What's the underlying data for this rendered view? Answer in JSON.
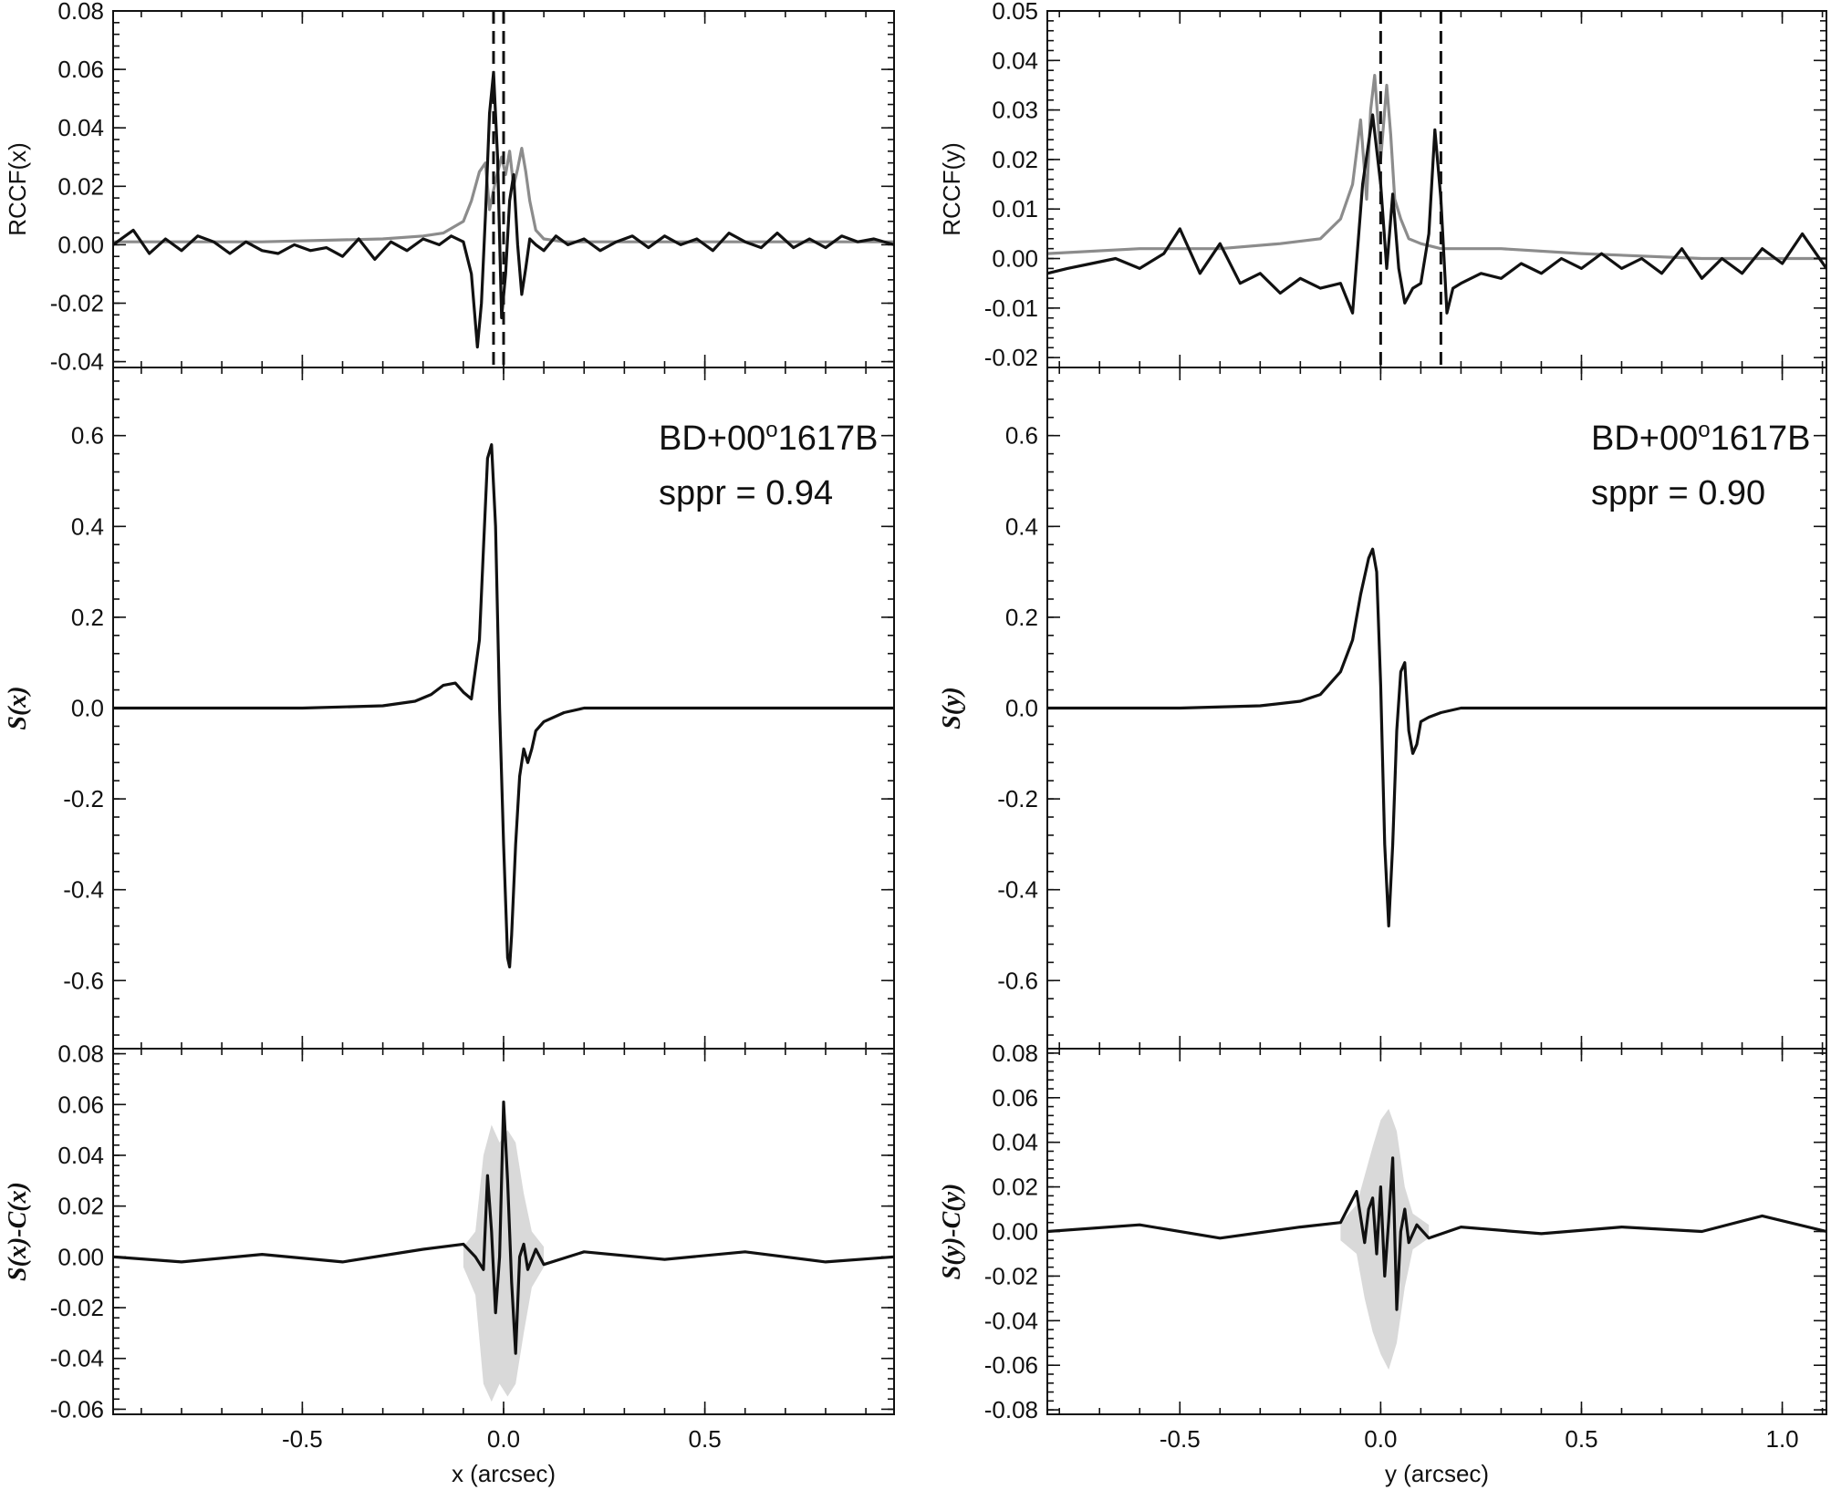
{
  "chart_data": [
    {
      "type": "line",
      "panel": "left-top",
      "ylabel": "RCCF(x)",
      "xlim": [
        -0.97,
        0.97
      ],
      "ylim": [
        -0.042,
        0.08
      ],
      "yticks": [
        -0.04,
        -0.02,
        0.0,
        0.02,
        0.04,
        0.06,
        0.08
      ],
      "ytick_labels": [
        "-0.04",
        "-0.02",
        "0.00",
        "0.02",
        "0.04",
        "0.06",
        "0.08"
      ],
      "xticks": [
        -0.5,
        0.0,
        0.5
      ],
      "vlines": [
        -0.025,
        0.0
      ],
      "series": [
        {
          "color": "#111111",
          "x": [
            -0.97,
            -0.92,
            -0.88,
            -0.84,
            -0.8,
            -0.76,
            -0.72,
            -0.68,
            -0.64,
            -0.6,
            -0.56,
            -0.52,
            -0.48,
            -0.44,
            -0.4,
            -0.36,
            -0.32,
            -0.28,
            -0.24,
            -0.2,
            -0.16,
            -0.13,
            -0.1,
            -0.08,
            -0.065,
            -0.055,
            -0.045,
            -0.035,
            -0.025,
            -0.015,
            -0.005,
            0.005,
            0.015,
            0.025,
            0.035,
            0.045,
            0.055,
            0.065,
            0.08,
            0.1,
            0.13,
            0.16,
            0.2,
            0.24,
            0.28,
            0.32,
            0.36,
            0.4,
            0.44,
            0.48,
            0.52,
            0.56,
            0.6,
            0.64,
            0.68,
            0.72,
            0.76,
            0.8,
            0.84,
            0.88,
            0.92,
            0.97
          ],
          "y": [
            0.0,
            0.005,
            -0.003,
            0.002,
            -0.002,
            0.003,
            0.001,
            -0.003,
            0.001,
            -0.002,
            -0.003,
            0.0,
            -0.002,
            -0.001,
            -0.004,
            0.002,
            -0.005,
            0.001,
            -0.002,
            0.002,
            0.0,
            0.003,
            0.001,
            -0.01,
            -0.035,
            -0.02,
            0.01,
            0.045,
            0.059,
            0.03,
            -0.025,
            -0.01,
            0.015,
            0.024,
            0.0,
            -0.017,
            -0.008,
            0.002,
            0.0,
            -0.002,
            0.003,
            0.0,
            0.002,
            -0.002,
            0.001,
            0.003,
            -0.001,
            0.003,
            0.0,
            0.002,
            -0.002,
            0.004,
            0.001,
            -0.001,
            0.004,
            -0.001,
            0.002,
            -0.001,
            0.003,
            0.001,
            0.002,
            0.0
          ]
        },
        {
          "color": "#8c8c8c",
          "x": [
            -0.97,
            -0.6,
            -0.3,
            -0.2,
            -0.15,
            -0.1,
            -0.08,
            -0.06,
            -0.045,
            -0.035,
            -0.02,
            -0.005,
            0.005,
            0.015,
            0.025,
            0.035,
            0.045,
            0.055,
            0.065,
            0.08,
            0.1,
            0.15,
            0.25,
            0.5,
            0.97
          ],
          "y": [
            0.001,
            0.001,
            0.002,
            0.003,
            0.004,
            0.008,
            0.015,
            0.025,
            0.028,
            0.012,
            0.022,
            0.03,
            0.024,
            0.032,
            0.02,
            0.026,
            0.033,
            0.025,
            0.015,
            0.005,
            0.002,
            0.001,
            0.001,
            0.001,
            0.001
          ]
        }
      ]
    },
    {
      "type": "line",
      "panel": "left-middle",
      "ylabel": "S(x)",
      "xlim": [
        -0.97,
        0.97
      ],
      "ylim": [
        -0.75,
        0.75
      ],
      "yticks": [
        -0.6,
        -0.4,
        -0.2,
        0.0,
        0.2,
        0.4,
        0.6
      ],
      "ytick_labels": [
        "-0.6",
        "-0.4",
        "-0.2",
        "0.0",
        "0.2",
        "0.4",
        "0.6"
      ],
      "xticks": [
        -0.5,
        0.0,
        0.5
      ],
      "annotation_lines": [
        "BD+00",
        "o",
        "1617B",
        "sppr = 0.94"
      ],
      "series": [
        {
          "color": "#111111",
          "x": [
            -0.97,
            -0.5,
            -0.3,
            -0.22,
            -0.18,
            -0.15,
            -0.12,
            -0.1,
            -0.08,
            -0.06,
            -0.05,
            -0.04,
            -0.03,
            -0.02,
            -0.01,
            0.0,
            0.01,
            0.015,
            0.02,
            0.03,
            0.04,
            0.05,
            0.06,
            0.07,
            0.08,
            0.1,
            0.15,
            0.2,
            0.3,
            0.5,
            0.97
          ],
          "y": [
            0.0,
            0.0,
            0.005,
            0.015,
            0.03,
            0.05,
            0.055,
            0.035,
            0.02,
            0.15,
            0.35,
            0.55,
            0.58,
            0.4,
            0.0,
            -0.3,
            -0.55,
            -0.57,
            -0.5,
            -0.3,
            -0.15,
            -0.09,
            -0.12,
            -0.09,
            -0.05,
            -0.03,
            -0.01,
            0.0,
            0.0,
            0.0,
            0.0
          ]
        }
      ]
    },
    {
      "type": "line",
      "panel": "left-bottom",
      "ylabel": "S(x)-C(x)",
      "xlabel": "x (arcsec)",
      "xlim": [
        -0.97,
        0.97
      ],
      "ylim": [
        -0.062,
        0.082
      ],
      "yticks": [
        -0.06,
        -0.04,
        -0.02,
        0.0,
        0.02,
        0.04,
        0.06,
        0.08
      ],
      "ytick_labels": [
        "-0.06",
        "-0.04",
        "-0.02",
        "0.00",
        "0.02",
        "0.04",
        "0.06",
        "0.08"
      ],
      "xticks": [
        -0.5,
        0.0,
        0.5
      ],
      "xtick_labels": [
        "-0.5",
        "0.0",
        "0.5"
      ],
      "series": [
        {
          "color": "#111111",
          "x": [
            -0.97,
            -0.8,
            -0.6,
            -0.4,
            -0.2,
            -0.1,
            -0.07,
            -0.05,
            -0.04,
            -0.03,
            -0.02,
            -0.01,
            0.0,
            0.01,
            0.02,
            0.03,
            0.04,
            0.05,
            0.06,
            0.08,
            0.1,
            0.2,
            0.4,
            0.6,
            0.8,
            0.97
          ],
          "y": [
            0.0,
            -0.002,
            0.001,
            -0.002,
            0.003,
            0.005,
            0.0,
            -0.005,
            0.032,
            0.01,
            -0.022,
            0.0,
            0.061,
            0.03,
            -0.01,
            -0.038,
            0.0,
            0.005,
            -0.005,
            0.003,
            -0.003,
            0.002,
            -0.001,
            0.002,
            -0.002,
            0.0
          ]
        },
        {
          "color": "#d9d9d9",
          "kind": "band",
          "x": [
            -0.1,
            -0.07,
            -0.05,
            -0.03,
            -0.01,
            0.01,
            0.03,
            0.05,
            0.07,
            0.1
          ],
          "upper": [
            0.004,
            0.01,
            0.04,
            0.052,
            0.045,
            0.05,
            0.045,
            0.025,
            0.01,
            0.004
          ],
          "lower": [
            -0.004,
            -0.015,
            -0.05,
            -0.057,
            -0.05,
            -0.055,
            -0.05,
            -0.03,
            -0.012,
            -0.004
          ]
        }
      ]
    },
    {
      "type": "line",
      "panel": "right-top",
      "ylabel": "RCCF(y)",
      "xlim": [
        -0.83,
        1.11
      ],
      "ylim": [
        -0.022,
        0.05
      ],
      "yticks": [
        -0.02,
        -0.01,
        0.0,
        0.01,
        0.02,
        0.03,
        0.04,
        0.05
      ],
      "ytick_labels": [
        "-0.02",
        "-0.01",
        "0.00",
        "0.01",
        "0.02",
        "0.03",
        "0.04",
        "0.05"
      ],
      "xticks": [
        -0.5,
        0.0,
        0.5,
        1.0
      ],
      "vlines": [
        0.0,
        0.15
      ],
      "series": [
        {
          "color": "#111111",
          "x": [
            -0.83,
            -0.78,
            -0.72,
            -0.66,
            -0.6,
            -0.54,
            -0.5,
            -0.45,
            -0.4,
            -0.35,
            -0.3,
            -0.25,
            -0.2,
            -0.15,
            -0.1,
            -0.07,
            -0.045,
            -0.02,
            0.0,
            0.015,
            0.03,
            0.045,
            0.06,
            0.08,
            0.1,
            0.12,
            0.135,
            0.15,
            0.165,
            0.18,
            0.2,
            0.25,
            0.3,
            0.35,
            0.4,
            0.45,
            0.5,
            0.55,
            0.6,
            0.65,
            0.7,
            0.75,
            0.8,
            0.85,
            0.9,
            0.95,
            1.0,
            1.05,
            1.11
          ],
          "y": [
            -0.003,
            -0.002,
            -0.001,
            0.0,
            -0.002,
            0.001,
            0.006,
            -0.003,
            0.003,
            -0.005,
            -0.003,
            -0.007,
            -0.004,
            -0.006,
            -0.005,
            -0.011,
            0.015,
            0.029,
            0.015,
            -0.002,
            0.013,
            -0.002,
            -0.009,
            -0.006,
            -0.005,
            0.005,
            0.026,
            0.012,
            -0.011,
            -0.006,
            -0.005,
            -0.003,
            -0.004,
            -0.001,
            -0.003,
            0.0,
            -0.002,
            0.001,
            -0.002,
            0.0,
            -0.003,
            0.002,
            -0.004,
            0.0,
            -0.003,
            0.002,
            -0.001,
            0.005,
            -0.002
          ]
        },
        {
          "color": "#8c8c8c",
          "x": [
            -0.83,
            -0.6,
            -0.4,
            -0.25,
            -0.15,
            -0.1,
            -0.07,
            -0.05,
            -0.035,
            -0.025,
            -0.015,
            0.0,
            0.015,
            0.025,
            0.035,
            0.05,
            0.07,
            0.1,
            0.15,
            0.2,
            0.3,
            0.5,
            0.8,
            1.11
          ],
          "y": [
            0.001,
            0.002,
            0.002,
            0.003,
            0.004,
            0.008,
            0.015,
            0.028,
            0.012,
            0.03,
            0.037,
            0.02,
            0.035,
            0.025,
            0.012,
            0.008,
            0.004,
            0.003,
            0.002,
            0.002,
            0.002,
            0.001,
            0.0,
            0.0
          ]
        }
      ]
    },
    {
      "type": "line",
      "panel": "right-middle",
      "ylabel": "S(y)",
      "xlim": [
        -0.83,
        1.11
      ],
      "ylim": [
        -0.75,
        0.75
      ],
      "yticks": [
        -0.6,
        -0.4,
        -0.2,
        0.0,
        0.2,
        0.4,
        0.6
      ],
      "ytick_labels": [
        "-0.6",
        "-0.4",
        "-0.2",
        "0.0",
        "0.2",
        "0.4",
        "0.6"
      ],
      "xticks": [
        -0.5,
        0.0,
        0.5,
        1.0
      ],
      "annotation_lines": [
        "BD+00",
        "o",
        "1617B",
        "sppr = 0.90"
      ],
      "series": [
        {
          "color": "#111111",
          "x": [
            -0.83,
            -0.5,
            -0.3,
            -0.2,
            -0.15,
            -0.1,
            -0.07,
            -0.05,
            -0.03,
            -0.02,
            -0.01,
            0.0,
            0.01,
            0.02,
            0.03,
            0.04,
            0.05,
            0.06,
            0.07,
            0.08,
            0.09,
            0.1,
            0.12,
            0.15,
            0.2,
            0.3,
            0.5,
            0.8,
            1.11
          ],
          "y": [
            0.0,
            0.0,
            0.005,
            0.015,
            0.03,
            0.08,
            0.15,
            0.25,
            0.33,
            0.35,
            0.3,
            0.05,
            -0.3,
            -0.48,
            -0.3,
            -0.05,
            0.08,
            0.1,
            -0.05,
            -0.1,
            -0.08,
            -0.03,
            -0.02,
            -0.01,
            0.0,
            0.0,
            0.0,
            0.0,
            0.0
          ]
        }
      ]
    },
    {
      "type": "line",
      "panel": "right-bottom",
      "ylabel": "S(y)-C(y)",
      "xlabel": "y (arcsec)",
      "xlim": [
        -0.83,
        1.11
      ],
      "ylim": [
        -0.082,
        0.082
      ],
      "yticks": [
        -0.08,
        -0.06,
        -0.04,
        -0.02,
        0.0,
        0.02,
        0.04,
        0.06,
        0.08
      ],
      "ytick_labels": [
        "-0.08",
        "-0.06",
        "-0.04",
        "-0.02",
        "0.00",
        "0.02",
        "0.04",
        "0.06",
        "0.08"
      ],
      "xticks": [
        -0.5,
        0.0,
        0.5,
        1.0
      ],
      "xtick_labels": [
        "-0.5",
        "0.0",
        "0.5",
        "1.0"
      ],
      "series": [
        {
          "color": "#111111",
          "x": [
            -0.83,
            -0.6,
            -0.4,
            -0.2,
            -0.1,
            -0.06,
            -0.04,
            -0.03,
            -0.02,
            -0.01,
            0.0,
            0.01,
            0.02,
            0.03,
            0.04,
            0.05,
            0.06,
            0.07,
            0.09,
            0.12,
            0.2,
            0.4,
            0.6,
            0.8,
            0.95,
            1.11
          ],
          "y": [
            0.0,
            0.003,
            -0.003,
            0.002,
            0.004,
            0.018,
            -0.005,
            0.01,
            0.015,
            -0.01,
            0.02,
            -0.02,
            0.005,
            0.033,
            -0.035,
            0.0,
            0.01,
            -0.005,
            0.003,
            -0.003,
            0.002,
            -0.001,
            0.002,
            0.0,
            0.007,
            0.0
          ]
        },
        {
          "color": "#d9d9d9",
          "kind": "band",
          "x": [
            -0.1,
            -0.06,
            -0.04,
            -0.02,
            0.0,
            0.02,
            0.04,
            0.06,
            0.08,
            0.12
          ],
          "upper": [
            0.004,
            0.012,
            0.025,
            0.038,
            0.05,
            0.055,
            0.045,
            0.02,
            0.008,
            0.003
          ],
          "lower": [
            -0.004,
            -0.01,
            -0.03,
            -0.045,
            -0.055,
            -0.062,
            -0.05,
            -0.025,
            -0.008,
            -0.003
          ]
        }
      ]
    }
  ]
}
